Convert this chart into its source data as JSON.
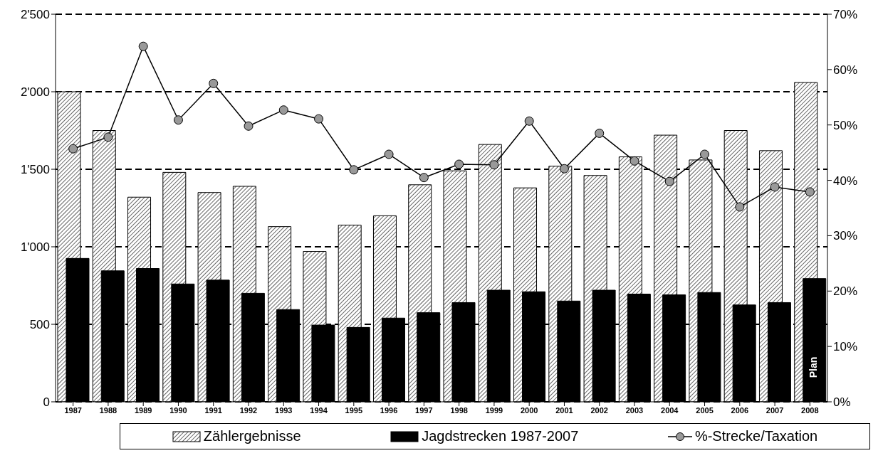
{
  "chart_data": {
    "type": "bar",
    "categories": [
      "1987",
      "1988",
      "1989",
      "1990",
      "1991",
      "1992",
      "1993",
      "1994",
      "1995",
      "1996",
      "1997",
      "1998",
      "1999",
      "2000",
      "2001",
      "2002",
      "2003",
      "2004",
      "2005",
      "2006",
      "2007",
      "2008"
    ],
    "series": [
      {
        "name": "Zählergebnisse",
        "color": "#000000",
        "values": [
          2000,
          1750,
          1320,
          1480,
          1350,
          1390,
          1130,
          970,
          1140,
          1200,
          1400,
          1490,
          1660,
          1380,
          1520,
          1460,
          1580,
          1720,
          1560,
          1750,
          1620,
          2060
        ]
      },
      {
        "name": "Jagdstrecken 1987-2007",
        "color": "#000000",
        "values": [
          925,
          845,
          860,
          760,
          785,
          700,
          595,
          495,
          480,
          540,
          575,
          640,
          720,
          710,
          650,
          720,
          695,
          690,
          705,
          625,
          640,
          795
        ]
      },
      {
        "name": "%-Strecke/Taxation",
        "type": "line",
        "axis": "y2",
        "color": "#000000",
        "marker": "circle",
        "values": [
          45.7,
          47.8,
          64.2,
          50.9,
          57.5,
          49.8,
          52.7,
          51.1,
          41.9,
          44.7,
          40.5,
          42.9,
          42.8,
          50.7,
          42.1,
          48.5,
          43.5,
          39.8,
          44.7,
          35.2,
          38.8,
          37.9
        ]
      }
    ],
    "ylim": [
      0,
      2500
    ],
    "yticks": [
      0,
      500,
      {
        "value": 1000,
        "label": "1'000"
      },
      {
        "value": 1500,
        "label": "1'500"
      },
      {
        "value": 2000,
        "label": "2'000"
      },
      {
        "value": 2500,
        "label": "2'500"
      }
    ],
    "y2lim": [
      0,
      70
    ],
    "y2ticks": [
      {
        "value": 0,
        "label": "0%"
      },
      {
        "value": 10,
        "label": "10%"
      },
      {
        "value": 20,
        "label": "20%"
      },
      {
        "value": 30,
        "label": "30%"
      },
      {
        "value": 40,
        "label": "40%"
      },
      {
        "value": 50,
        "label": "50%"
      },
      {
        "value": 60,
        "label": "60%"
      },
      {
        "value": 70,
        "label": "70%"
      }
    ],
    "grid": "y",
    "legend": "bottom",
    "annotations": [
      "Plan"
    ]
  }
}
